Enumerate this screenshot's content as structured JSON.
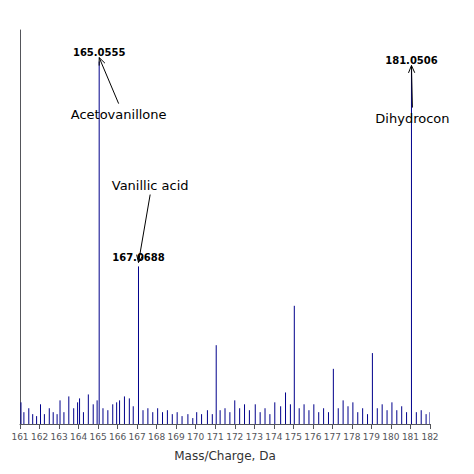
{
  "chart_data": {
    "type": "stem",
    "xlabel": "Mass/Charge, Da",
    "x": [
      161.05,
      161.2,
      161.45,
      161.65,
      161.85,
      162.05,
      162.25,
      162.5,
      162.7,
      162.9,
      163.05,
      163.25,
      163.5,
      163.75,
      163.95,
      164.05,
      164.25,
      164.5,
      164.75,
      164.95,
      165.0555,
      165.25,
      165.5,
      165.75,
      165.95,
      166.1,
      166.35,
      166.6,
      166.8,
      167.0688,
      167.3,
      167.55,
      167.8,
      168.05,
      168.3,
      168.55,
      168.8,
      169.05,
      169.3,
      169.6,
      169.85,
      170.05,
      170.3,
      170.6,
      170.85,
      171.05,
      171.25,
      171.5,
      171.75,
      172.0,
      172.25,
      172.5,
      172.75,
      173.05,
      173.3,
      173.55,
      173.8,
      174.05,
      174.35,
      174.6,
      174.85,
      175.05,
      175.3,
      175.55,
      175.8,
      176.05,
      176.3,
      176.55,
      176.8,
      177.05,
      177.3,
      177.55,
      177.8,
      178.05,
      178.3,
      178.55,
      178.8,
      179.05,
      179.3,
      179.55,
      179.8,
      180.05,
      180.3,
      180.55,
      180.8,
      181.0506,
      181.3,
      181.55,
      181.8,
      182.0
    ],
    "values": [
      0.055,
      0.03,
      0.04,
      0.025,
      0.02,
      0.05,
      0.025,
      0.04,
      0.03,
      0.025,
      0.06,
      0.03,
      0.07,
      0.04,
      0.055,
      0.065,
      0.03,
      0.075,
      0.05,
      0.06,
      0.92,
      0.04,
      0.035,
      0.05,
      0.055,
      0.06,
      0.07,
      0.065,
      0.045,
      0.4,
      0.035,
      0.04,
      0.03,
      0.04,
      0.03,
      0.035,
      0.025,
      0.03,
      0.02,
      0.025,
      0.015,
      0.03,
      0.025,
      0.035,
      0.025,
      0.2,
      0.035,
      0.04,
      0.03,
      0.06,
      0.04,
      0.05,
      0.035,
      0.05,
      0.03,
      0.04,
      0.025,
      0.055,
      0.045,
      0.08,
      0.05,
      0.3,
      0.04,
      0.05,
      0.035,
      0.05,
      0.03,
      0.04,
      0.03,
      0.14,
      0.04,
      0.06,
      0.045,
      0.055,
      0.03,
      0.04,
      0.025,
      0.18,
      0.04,
      0.05,
      0.035,
      0.055,
      0.035,
      0.045,
      0.03,
      0.9,
      0.03,
      0.035,
      0.025,
      0.03
    ],
    "color": "#00008B",
    "xlim": [
      161,
      182
    ],
    "ylim": [
      0,
      1.0
    ],
    "xticks": [
      161,
      162,
      163,
      164,
      165,
      166,
      167,
      168,
      169,
      170,
      171,
      172,
      173,
      174,
      175,
      176,
      177,
      178,
      179,
      180,
      181,
      182
    ],
    "grid": false,
    "tick_labels": "x",
    "annotations": [
      {
        "text": "165.0555",
        "x": 165.0555,
        "y": 0.92
      },
      {
        "text": "167.0688",
        "x": 167.0688,
        "y": 0.4
      },
      {
        "text": "181.0506",
        "x": 181.0506,
        "y": 0.9
      },
      {
        "text": "Acetovanillone",
        "x": 163.6,
        "y": 0.77,
        "arrow_x": 165.0555,
        "arrow_y": 0.93
      },
      {
        "text": "Vanillic acid",
        "x": 165.7,
        "y": 0.59,
        "arrow_x": 167.0688,
        "arrow_y": 0.41
      },
      {
        "text": "Dihydrocon",
        "x": 179.2,
        "y": 0.76,
        "arrow_x": 181.0506,
        "arrow_y": 0.91
      }
    ]
  }
}
